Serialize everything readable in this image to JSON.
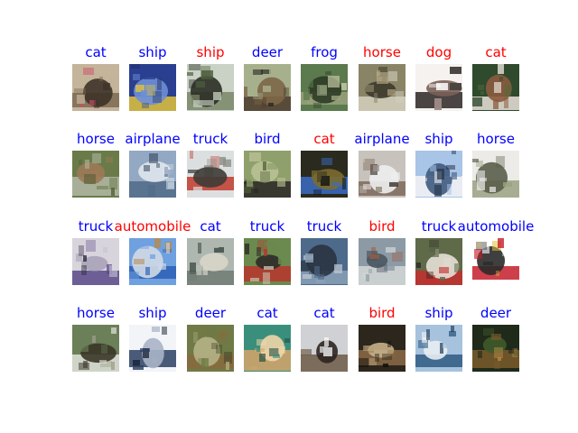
{
  "colors": {
    "correct": "#0000ff",
    "incorrect": "#ff0000"
  },
  "rows": [
    {
      "cells": [
        {
          "label": "cat",
          "status": "correct",
          "image": "cat-face-thumbnail",
          "palette": [
            "#c4b49a",
            "#7d6a52",
            "#3e3328",
            "#d24a6a"
          ]
        },
        {
          "label": "ship",
          "status": "correct",
          "image": "ship-thumbnail",
          "palette": [
            "#2a3f8f",
            "#e3c33c",
            "#6d8fd6",
            "#1e2a55"
          ]
        },
        {
          "label": "ship",
          "status": "incorrect",
          "image": "airplane-over-field-thumbnail",
          "palette": [
            "#c9d2c4",
            "#7a8769",
            "#2b2e25",
            "#4a5a3a"
          ]
        },
        {
          "label": "deer",
          "status": "correct",
          "image": "deer-antlers-thumbnail",
          "palette": [
            "#a7b08c",
            "#4b3a2b",
            "#7c6747",
            "#2b2a22"
          ]
        },
        {
          "label": "frog",
          "status": "correct",
          "image": "frog-thumbnail",
          "palette": [
            "#5b7a4d",
            "#9aa27c",
            "#2e3b27",
            "#c7c9a6"
          ]
        },
        {
          "label": "horse",
          "status": "incorrect",
          "image": "truck-thumbnail",
          "palette": [
            "#8a8466",
            "#d3d0be",
            "#3c3a2c",
            "#b6a985"
          ]
        },
        {
          "label": "dog",
          "status": "incorrect",
          "image": "cat-thumbnail",
          "palette": [
            "#f5f2ef",
            "#2c2624",
            "#7a6158",
            "#ffffff"
          ]
        },
        {
          "label": "cat",
          "status": "incorrect",
          "image": "dog-thumbnail",
          "palette": [
            "#2f4a2d",
            "#e9e1d9",
            "#8b5b3e",
            "#4e6a3c"
          ]
        }
      ]
    },
    {
      "cells": [
        {
          "label": "horse",
          "status": "correct",
          "image": "horse-thumbnail",
          "palette": [
            "#6a7b49",
            "#b1b9a6",
            "#9c7a56",
            "#4c5a32"
          ]
        },
        {
          "label": "airplane",
          "status": "correct",
          "image": "airplane-thumbnail",
          "palette": [
            "#93a8c2",
            "#4f6a87",
            "#dfe6ec",
            "#2d3f57"
          ]
        },
        {
          "label": "truck",
          "status": "correct",
          "image": "truck-thumbnail",
          "palette": [
            "#dcdfe0",
            "#c23b2c",
            "#3d3b36",
            "#8a8f86"
          ]
        },
        {
          "label": "bird",
          "status": "correct",
          "image": "bird-thumbnail",
          "palette": [
            "#8fa06c",
            "#2a2623",
            "#b9c195",
            "#5a6b3e"
          ]
        },
        {
          "label": "cat",
          "status": "incorrect",
          "image": "car-thumbnail",
          "palette": [
            "#2a2a1e",
            "#3b6cc4",
            "#7b6b2d",
            "#0f0f0c"
          ]
        },
        {
          "label": "airplane",
          "status": "correct",
          "image": "airplane-thumbnail",
          "palette": [
            "#c8c2bd",
            "#7c6a5b",
            "#eeeeee",
            "#3e3530"
          ]
        },
        {
          "label": "ship",
          "status": "correct",
          "image": "ship-thumbnail",
          "palette": [
            "#a8c4e6",
            "#f5f5f5",
            "#3f5a7e",
            "#253248"
          ]
        },
        {
          "label": "horse",
          "status": "correct",
          "image": "horse-thumbnail",
          "palette": [
            "#ecebe7",
            "#9aa283",
            "#5a5e4a",
            "#ffffff"
          ]
        }
      ]
    },
    {
      "cells": [
        {
          "label": "truck",
          "status": "correct",
          "image": "truck-thumbnail",
          "palette": [
            "#d7d4dc",
            "#5b4a8a",
            "#a9a3b8",
            "#2e2a3c"
          ]
        },
        {
          "label": "automobile",
          "status": "incorrect",
          "image": "airplane-thumbnail",
          "palette": [
            "#6fa0df",
            "#2d5fb5",
            "#cfd9e6",
            "#b88a4a"
          ]
        },
        {
          "label": "cat",
          "status": "correct",
          "image": "cat-thumbnail",
          "palette": [
            "#aeb7b0",
            "#6f7b73",
            "#d9d6c8",
            "#3e4a43"
          ]
        },
        {
          "label": "truck",
          "status": "correct",
          "image": "truck-thumbnail",
          "palette": [
            "#6b8a4f",
            "#b8342c",
            "#2d2b28",
            "#c9c4b0"
          ]
        },
        {
          "label": "truck",
          "status": "correct",
          "image": "truck-thumbnail",
          "palette": [
            "#4d6a8a",
            "#8aa0b6",
            "#2a3340",
            "#c7cdd4"
          ]
        },
        {
          "label": "bird",
          "status": "incorrect",
          "image": "airplane-thumbnail",
          "palette": [
            "#8c9aa5",
            "#d3d7d6",
            "#4a5660",
            "#a45d3e"
          ]
        },
        {
          "label": "truck",
          "status": "correct",
          "image": "fire-truck-thumbnail",
          "palette": [
            "#5f6a49",
            "#c42e2e",
            "#e6e1d6",
            "#2e2a24"
          ]
        },
        {
          "label": "automobile",
          "status": "correct",
          "image": "car-thumbnail",
          "palette": [
            "#ffffff",
            "#c41d2a",
            "#2a2a2a",
            "#e2c23a"
          ]
        }
      ]
    },
    {
      "cells": [
        {
          "label": "horse",
          "status": "correct",
          "image": "horse-thumbnail",
          "palette": [
            "#6b7f58",
            "#e1e3dc",
            "#3a3628",
            "#9c9b85"
          ]
        },
        {
          "label": "ship",
          "status": "correct",
          "image": "ship-thumbnail",
          "palette": [
            "#f2f4f7",
            "#2d3f63",
            "#a8b4c7",
            "#111a2b"
          ]
        },
        {
          "label": "deer",
          "status": "correct",
          "image": "deer-thumbnail",
          "palette": [
            "#6f7a46",
            "#8a6a3e",
            "#b5b286",
            "#3f4526"
          ]
        },
        {
          "label": "cat",
          "status": "correct",
          "image": "cat-thumbnail",
          "palette": [
            "#3a8f7c",
            "#d6a46a",
            "#f0d5a8",
            "#1e4e45"
          ]
        },
        {
          "label": "cat",
          "status": "correct",
          "image": "cat-face-thumbnail",
          "palette": [
            "#cfd1d4",
            "#6d5a47",
            "#2e2520",
            "#ffffff"
          ]
        },
        {
          "label": "bird",
          "status": "incorrect",
          "image": "cat-thumbnail",
          "palette": [
            "#2c261d",
            "#8b6b45",
            "#c7b08a",
            "#0f0d0a"
          ]
        },
        {
          "label": "ship",
          "status": "correct",
          "image": "ship-thumbnail",
          "palette": [
            "#a6c2dc",
            "#2e5b82",
            "#e8eef2",
            "#1c3752"
          ]
        },
        {
          "label": "deer",
          "status": "correct",
          "image": "deer-thumbnail",
          "palette": [
            "#1f2a1a",
            "#7b5a2b",
            "#3e5a2a",
            "#b88a4a"
          ]
        }
      ]
    }
  ]
}
